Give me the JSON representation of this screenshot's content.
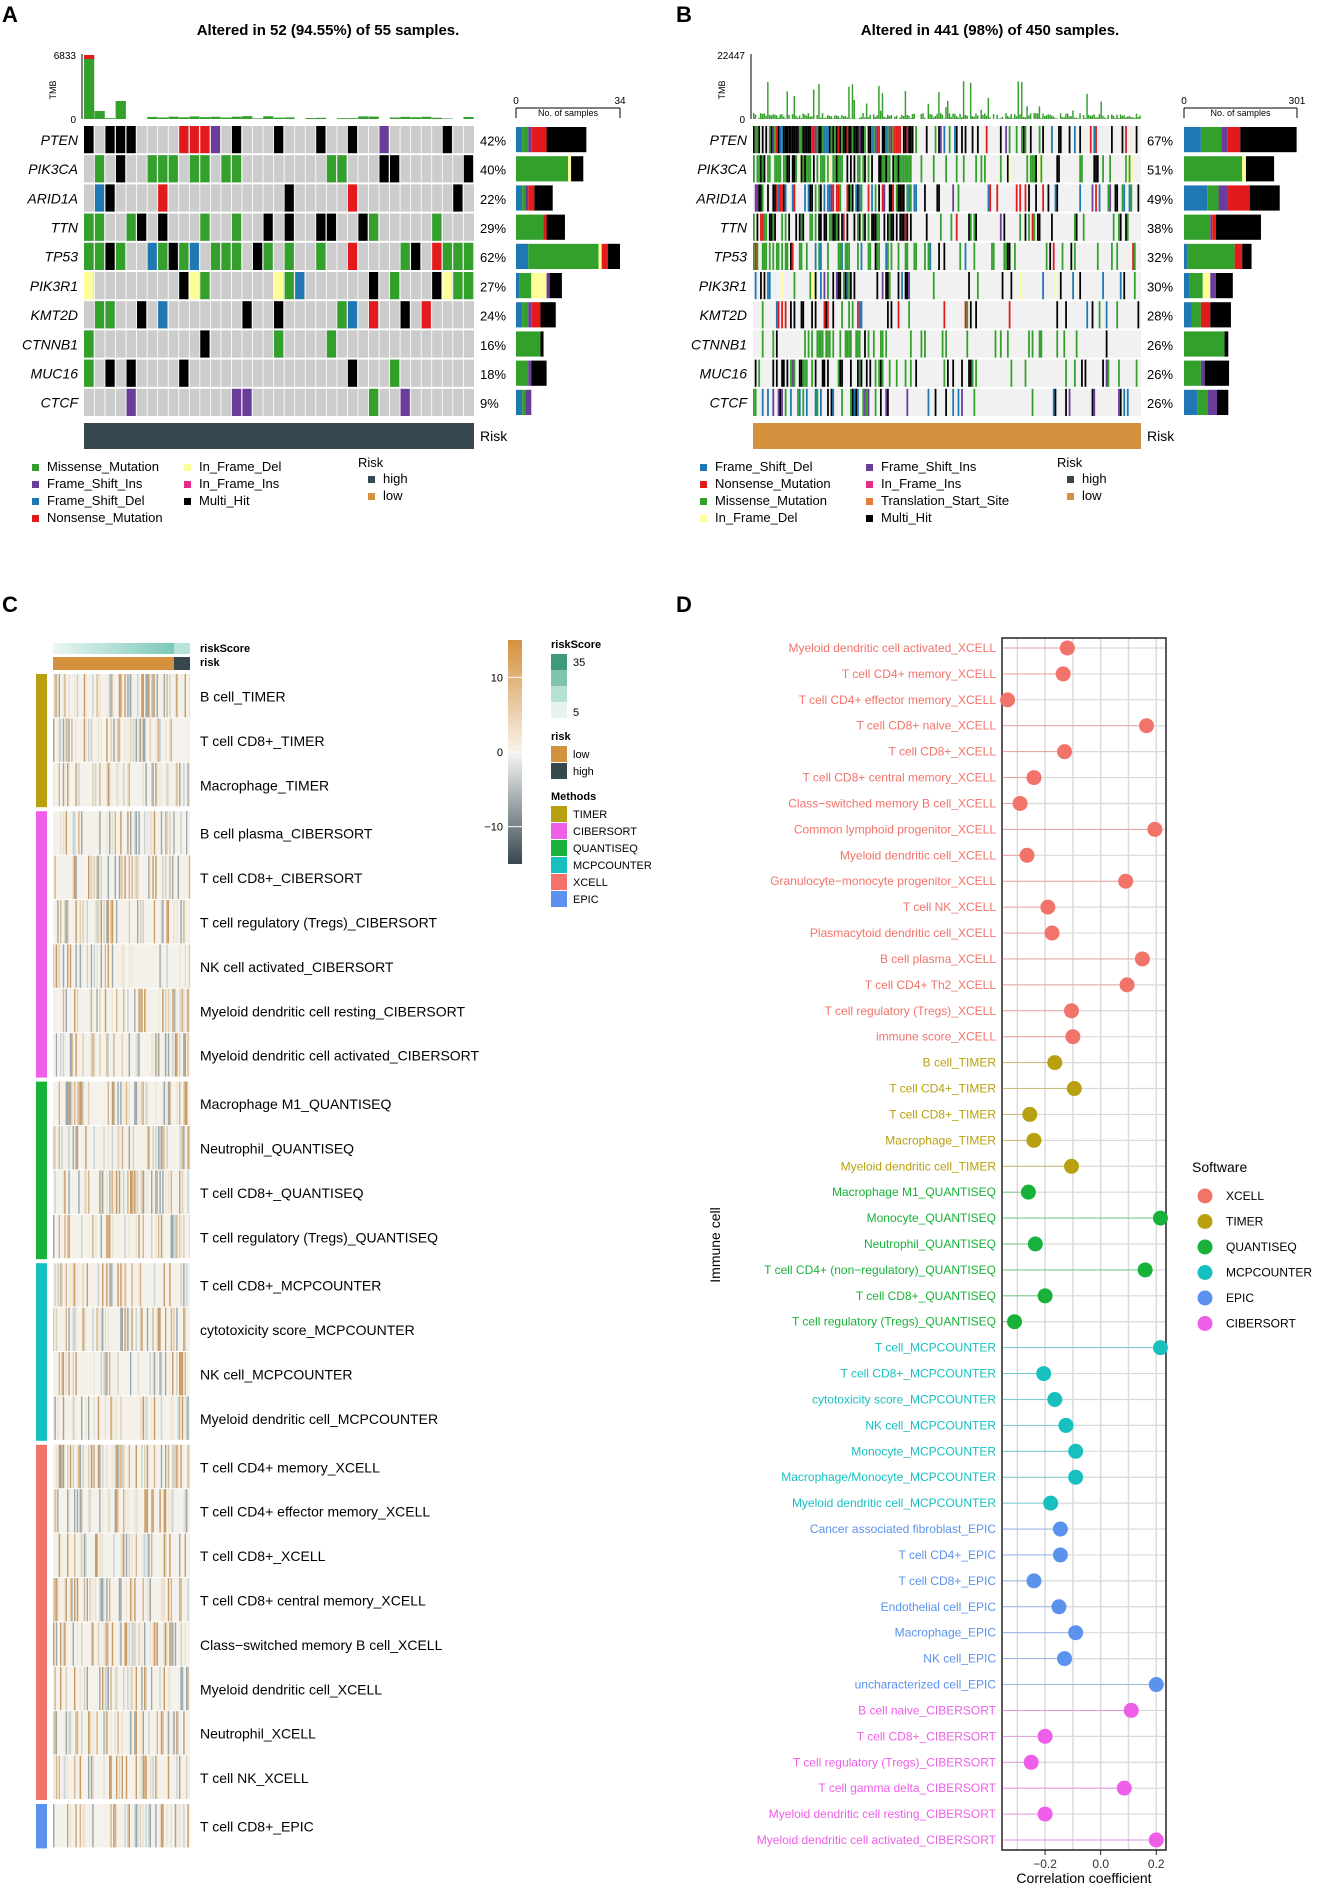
{
  "panel_labels": {
    "a": "A",
    "b": "B",
    "c": "C",
    "d": "D"
  },
  "colors": {
    "missense": "#33a02c",
    "frame_shift_ins": "#6a3d9a",
    "frame_shift_del": "#1f78b4",
    "nonsense": "#e31a1c",
    "in_frame_del": "#ffff99",
    "in_frame_ins": "#e7298a",
    "translation_start_site": "#e87a3a",
    "multi_hit": "#000000",
    "empty": "#cccccc",
    "risk_high": "#37474f",
    "risk_low": "#d4913e",
    "XCELL": "#f2736a",
    "TIMER": "#b8a010",
    "QUANTISEQ": "#18b23a",
    "MCPCOUNTER": "#18bfbf",
    "EPIC": "#5b92ee",
    "CIBERSORT": "#ee5ee9"
  },
  "chart_data": [
    {
      "id": "A",
      "type": "heatmap",
      "subtype": "oncoplot",
      "title": "Altered in 52 (94.55%) of 55 samples.",
      "tmb_label": "TMB",
      "tmb_max": "6833",
      "tmb_min": "0",
      "bar_axis_label": "No. of samples",
      "bar_axis_ticks": [
        "0",
        "34"
      ],
      "bar_axis_max": 34,
      "annotation_label": "Risk",
      "genes": [
        {
          "name": "PTEN",
          "pct": "42%",
          "counts": {
            "frame_shift_del": 2,
            "missense": 2,
            "frame_shift_ins": 1,
            "nonsense": 5,
            "multi_hit": 13
          }
        },
        {
          "name": "PIK3CA",
          "pct": "40%",
          "counts": {
            "missense": 17,
            "in_frame_del": 1,
            "multi_hit": 4
          }
        },
        {
          "name": "ARID1A",
          "pct": "22%",
          "counts": {
            "frame_shift_del": 2,
            "missense": 1,
            "frame_shift_ins": 1,
            "nonsense": 2,
            "multi_hit": 6
          }
        },
        {
          "name": "TTN",
          "pct": "29%",
          "counts": {
            "missense": 9,
            "nonsense": 1,
            "multi_hit": 6
          }
        },
        {
          "name": "TP53",
          "pct": "62%",
          "counts": {
            "missense": 23,
            "frame_shift_del": 4,
            "nonsense": 2,
            "in_frame_del": 1,
            "multi_hit": 4
          }
        },
        {
          "name": "PIK3R1",
          "pct": "27%",
          "counts": {
            "missense": 4,
            "frame_shift_del": 1,
            "in_frame_del": 5,
            "frame_shift_ins": 1,
            "multi_hit": 4
          }
        },
        {
          "name": "KMT2D",
          "pct": "24%",
          "counts": {
            "frame_shift_del": 2,
            "missense": 2,
            "frame_shift_ins": 1,
            "nonsense": 3,
            "multi_hit": 5
          }
        },
        {
          "name": "CTNNB1",
          "pct": "16%",
          "counts": {
            "missense": 8,
            "multi_hit": 1
          }
        },
        {
          "name": "MUC16",
          "pct": "18%",
          "counts": {
            "missense": 4,
            "frame_shift_ins": 1,
            "multi_hit": 5
          }
        },
        {
          "name": "CTCF",
          "pct": "9%",
          "counts": {
            "frame_shift_ins": 2,
            "frame_shift_del": 2,
            "missense": 1
          }
        }
      ],
      "legend_mutations": [
        "Missense_Mutation",
        "Frame_Shift_Ins",
        "Frame_Shift_Del",
        "Nonsense_Mutation",
        "In_Frame_Del",
        "In_Frame_Ins",
        "Multi_Hit"
      ],
      "legend_risk_title": "Risk",
      "legend_risk": [
        "high",
        "low"
      ]
    },
    {
      "id": "B",
      "type": "heatmap",
      "subtype": "oncoplot",
      "title": "Altered in 441 (98%) of 450 samples.",
      "tmb_label": "TMB",
      "tmb_max": "22447",
      "tmb_min": "0",
      "bar_axis_label": "No. of samples",
      "bar_axis_ticks": [
        "0",
        "301"
      ],
      "bar_axis_max": 301,
      "annotation_label": "Risk",
      "genes": [
        {
          "name": "PTEN",
          "pct": "67%",
          "counts": {
            "frame_shift_del": 45,
            "missense": 55,
            "frame_shift_ins": 15,
            "nonsense": 35,
            "multi_hit": 150
          }
        },
        {
          "name": "PIK3CA",
          "pct": "51%",
          "counts": {
            "missense": 155,
            "in_frame_del": 10,
            "multi_hit": 75
          }
        },
        {
          "name": "ARID1A",
          "pct": "49%",
          "counts": {
            "frame_shift_del": 62,
            "nonsense": 58,
            "frame_shift_ins": 25,
            "missense": 30,
            "multi_hit": 80
          }
        },
        {
          "name": "TTN",
          "pct": "38%",
          "counts": {
            "missense": 70,
            "nonsense": 10,
            "frame_shift_ins": 5,
            "multi_hit": 120
          }
        },
        {
          "name": "TP53",
          "pct": "32%",
          "counts": {
            "missense": 125,
            "frame_shift_del": 10,
            "nonsense": 20,
            "multi_hit": 25
          }
        },
        {
          "name": "PIK3R1",
          "pct": "30%",
          "counts": {
            "frame_shift_del": 15,
            "missense": 35,
            "in_frame_del": 20,
            "frame_shift_ins": 15,
            "multi_hit": 45
          }
        },
        {
          "name": "KMT2D",
          "pct": "28%",
          "counts": {
            "frame_shift_del": 20,
            "missense": 25,
            "nonsense": 25,
            "multi_hit": 55
          }
        },
        {
          "name": "CTNNB1",
          "pct": "26%",
          "counts": {
            "missense": 108,
            "multi_hit": 10
          }
        },
        {
          "name": "MUC16",
          "pct": "26%",
          "counts": {
            "missense": 45,
            "frame_shift_ins": 10,
            "multi_hit": 65
          }
        },
        {
          "name": "CTCF",
          "pct": "26%",
          "counts": {
            "frame_shift_del": 35,
            "missense": 28,
            "frame_shift_ins": 25,
            "multi_hit": 30
          }
        }
      ],
      "legend_mutations": [
        "Frame_Shift_Del",
        "Nonsense_Mutation",
        "Missense_Mutation",
        "In_Frame_Del",
        "Frame_Shift_Ins",
        "In_Frame_Ins",
        "Translation_Start_Site",
        "Multi_Hit"
      ],
      "legend_risk_title": "Risk",
      "legend_risk": [
        "high",
        "low"
      ]
    },
    {
      "id": "C",
      "type": "heatmap",
      "annotation_labels": [
        "riskScore",
        "risk"
      ],
      "rows": [
        {
          "label": "B cell_TIMER",
          "method": "TIMER"
        },
        {
          "label": "T cell CD8+_TIMER",
          "method": "TIMER"
        },
        {
          "label": "Macrophage_TIMER",
          "method": "TIMER"
        },
        {
          "label": "B cell plasma_CIBERSORT",
          "method": "CIBERSORT"
        },
        {
          "label": "T cell CD8+_CIBERSORT",
          "method": "CIBERSORT"
        },
        {
          "label": "T cell regulatory (Tregs)_CIBERSORT",
          "method": "CIBERSORT"
        },
        {
          "label": "NK cell activated_CIBERSORT",
          "method": "CIBERSORT"
        },
        {
          "label": "Myeloid dendritic cell resting_CIBERSORT",
          "method": "CIBERSORT"
        },
        {
          "label": "Myeloid dendritic cell activated_CIBERSORT",
          "method": "CIBERSORT"
        },
        {
          "label": "Macrophage M1_QUANTISEQ",
          "method": "QUANTISEQ"
        },
        {
          "label": "Neutrophil_QUANTISEQ",
          "method": "QUANTISEQ"
        },
        {
          "label": "T cell CD8+_QUANTISEQ",
          "method": "QUANTISEQ"
        },
        {
          "label": "T cell regulatory (Tregs)_QUANTISEQ",
          "method": "QUANTISEQ"
        },
        {
          "label": "T cell CD8+_MCPCOUNTER",
          "method": "MCPCOUNTER"
        },
        {
          "label": "cytotoxicity score_MCPCOUNTER",
          "method": "MCPCOUNTER"
        },
        {
          "label": "NK cell_MCPCOUNTER",
          "method": "MCPCOUNTER"
        },
        {
          "label": "Myeloid dendritic cell_MCPCOUNTER",
          "method": "MCPCOUNTER"
        },
        {
          "label": "T cell CD4+ memory_XCELL",
          "method": "XCELL"
        },
        {
          "label": "T cell CD4+ effector memory_XCELL",
          "method": "XCELL"
        },
        {
          "label": "T cell CD8+_XCELL",
          "method": "XCELL"
        },
        {
          "label": "T cell CD8+ central memory_XCELL",
          "method": "XCELL"
        },
        {
          "label": "Class−switched memory B cell_XCELL",
          "method": "XCELL"
        },
        {
          "label": "Myeloid dendritic cell_XCELL",
          "method": "XCELL"
        },
        {
          "label": "Neutrophil_XCELL",
          "method": "XCELL"
        },
        {
          "label": "T cell NK_XCELL",
          "method": "XCELL"
        },
        {
          "label": "T cell CD8+_EPIC",
          "method": "EPIC"
        }
      ],
      "colorbar_ticks": [
        "10",
        "0",
        "−10"
      ],
      "colorbar_range": [
        -15,
        15
      ],
      "legend_riskscore_title": "riskScore",
      "legend_riskscore_ticks": [
        "35",
        "5"
      ],
      "legend_risk_title": "risk",
      "legend_risk": [
        "low",
        "high"
      ],
      "legend_methods_title": "Methods",
      "legend_methods": [
        "TIMER",
        "CIBERSORT",
        "QUANTISEQ",
        "MCPCOUNTER",
        "XCELL",
        "EPIC"
      ]
    },
    {
      "id": "D",
      "type": "scatter",
      "subtype": "lollipop",
      "xlabel": "Correlation coefficient",
      "ylabel": "Immune cell",
      "xticks": [
        "−0.2",
        "0.0",
        "0.2"
      ],
      "xlim": [
        -0.355,
        0.235
      ],
      "legend_title": "Software",
      "legend": [
        "XCELL",
        "TIMER",
        "QUANTISEQ",
        "MCPCOUNTER",
        "EPIC",
        "CIBERSORT"
      ],
      "points": [
        {
          "label": "Myeloid dendritic cell activated_XCELL",
          "value": -0.12,
          "software": "XCELL"
        },
        {
          "label": "T cell CD4+ memory_XCELL",
          "value": -0.135,
          "software": "XCELL"
        },
        {
          "label": "T cell CD4+ effector memory_XCELL",
          "value": -0.335,
          "software": "XCELL"
        },
        {
          "label": "T cell CD8+ naive_XCELL",
          "value": 0.165,
          "software": "XCELL"
        },
        {
          "label": "T cell CD8+_XCELL",
          "value": -0.13,
          "software": "XCELL"
        },
        {
          "label": "T cell CD8+ central memory_XCELL",
          "value": -0.24,
          "software": "XCELL"
        },
        {
          "label": "Class−switched memory B cell_XCELL",
          "value": -0.29,
          "software": "XCELL"
        },
        {
          "label": "Common lymphoid progenitor_XCELL",
          "value": 0.195,
          "software": "XCELL"
        },
        {
          "label": "Myeloid dendritic cell_XCELL",
          "value": -0.265,
          "software": "XCELL"
        },
        {
          "label": "Granulocyte−monocyte progenitor_XCELL",
          "value": 0.09,
          "software": "XCELL"
        },
        {
          "label": "T cell NK_XCELL",
          "value": -0.19,
          "software": "XCELL"
        },
        {
          "label": "Plasmacytoid dendritic cell_XCELL",
          "value": -0.175,
          "software": "XCELL"
        },
        {
          "label": "B cell plasma_XCELL",
          "value": 0.15,
          "software": "XCELL"
        },
        {
          "label": "T cell CD4+ Th2_XCELL",
          "value": 0.095,
          "software": "XCELL"
        },
        {
          "label": "T cell regulatory (Tregs)_XCELL",
          "value": -0.105,
          "software": "XCELL"
        },
        {
          "label": "immune score_XCELL",
          "value": -0.1,
          "software": "XCELL"
        },
        {
          "label": "B cell_TIMER",
          "value": -0.165,
          "software": "TIMER"
        },
        {
          "label": "T cell CD4+_TIMER",
          "value": -0.095,
          "software": "TIMER"
        },
        {
          "label": "T cell CD8+_TIMER",
          "value": -0.255,
          "software": "TIMER"
        },
        {
          "label": "Macrophage_TIMER",
          "value": -0.24,
          "software": "TIMER"
        },
        {
          "label": "Myeloid dendritic cell_TIMER",
          "value": -0.105,
          "software": "TIMER"
        },
        {
          "label": "Macrophage M1_QUANTISEQ",
          "value": -0.26,
          "software": "QUANTISEQ"
        },
        {
          "label": "Monocyte_QUANTISEQ",
          "value": 0.215,
          "software": "QUANTISEQ"
        },
        {
          "label": "Neutrophil_QUANTISEQ",
          "value": -0.235,
          "software": "QUANTISEQ"
        },
        {
          "label": "T cell CD4+ (non−regulatory)_QUANTISEQ",
          "value": 0.16,
          "software": "QUANTISEQ"
        },
        {
          "label": "T cell CD8+_QUANTISEQ",
          "value": -0.2,
          "software": "QUANTISEQ"
        },
        {
          "label": "T cell regulatory (Tregs)_QUANTISEQ",
          "value": -0.31,
          "software": "QUANTISEQ"
        },
        {
          "label": "T cell_MCPCOUNTER",
          "value": 0.215,
          "software": "MCPCOUNTER"
        },
        {
          "label": "T cell CD8+_MCPCOUNTER",
          "value": -0.205,
          "software": "MCPCOUNTER"
        },
        {
          "label": "cytotoxicity score_MCPCOUNTER",
          "value": -0.165,
          "software": "MCPCOUNTER"
        },
        {
          "label": "NK cell_MCPCOUNTER",
          "value": -0.125,
          "software": "MCPCOUNTER"
        },
        {
          "label": "Monocyte_MCPCOUNTER",
          "value": -0.09,
          "software": "MCPCOUNTER"
        },
        {
          "label": "Macrophage/Monocyte_MCPCOUNTER",
          "value": -0.09,
          "software": "MCPCOUNTER"
        },
        {
          "label": "Myeloid dendritic cell_MCPCOUNTER",
          "value": -0.18,
          "software": "MCPCOUNTER"
        },
        {
          "label": "Cancer associated fibroblast_EPIC",
          "value": -0.145,
          "software": "EPIC"
        },
        {
          "label": "T cell CD4+_EPIC",
          "value": -0.145,
          "software": "EPIC"
        },
        {
          "label": "T cell CD8+_EPIC",
          "value": -0.24,
          "software": "EPIC"
        },
        {
          "label": "Endothelial cell_EPIC",
          "value": -0.15,
          "software": "EPIC"
        },
        {
          "label": "Macrophage_EPIC",
          "value": -0.09,
          "software": "EPIC"
        },
        {
          "label": "NK cell_EPIC",
          "value": -0.13,
          "software": "EPIC"
        },
        {
          "label": "uncharacterized cell_EPIC",
          "value": 0.2,
          "software": "EPIC"
        },
        {
          "label": "B cell naive_CIBERSORT",
          "value": 0.11,
          "software": "CIBERSORT"
        },
        {
          "label": "T cell CD8+_CIBERSORT",
          "value": -0.2,
          "software": "CIBERSORT"
        },
        {
          "label": "T cell regulatory (Tregs)_CIBERSORT",
          "value": -0.25,
          "software": "CIBERSORT"
        },
        {
          "label": "T cell gamma delta_CIBERSORT",
          "value": 0.085,
          "software": "CIBERSORT"
        },
        {
          "label": "Myeloid dendritic cell resting_CIBERSORT",
          "value": -0.2,
          "software": "CIBERSORT"
        },
        {
          "label": "Myeloid dendritic cell activated_CIBERSORT",
          "value": 0.2,
          "software": "CIBERSORT"
        }
      ]
    }
  ]
}
